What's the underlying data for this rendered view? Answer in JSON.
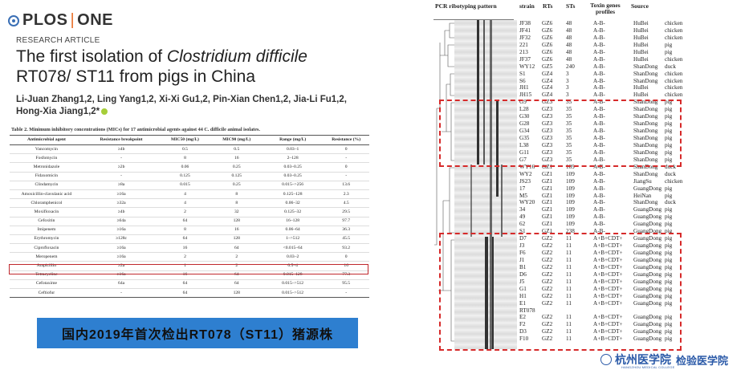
{
  "header": {
    "journal_left": "PLOS",
    "journal_sep": "|",
    "journal_right": "ONE",
    "article_type": "RESEARCH ARTICLE",
    "title_a": "The first isolation of ",
    "title_species": "Clostridium difficile",
    "title_b": " RT078/ ST11 from pigs in China",
    "authors": "Li-Juan Zhang1,2, Ling Yang1,2, Xi-Xi Gu1,2, Pin-Xian Chen1,2, Jia-Li Fu1,2, Hong-Xia Jiang1,2*"
  },
  "mic_table": {
    "caption": "Table 2.  Minimum inhibitory concentrations (MICs) for 17 antimicrobial agents against 44 C. difficile animal isolates.",
    "headers": [
      "Antimicrobial agent",
      "Resistance breakpoint",
      "MIC50 (mg/L)",
      "MIC90 (mg/L)",
      "Range (mg/L)",
      "Resistance (%)"
    ],
    "rows": [
      [
        "Vancomycin",
        "≥4b",
        "0.5",
        "0.5",
        "0.03–1",
        "0"
      ],
      [
        "Fosfomycin",
        "-",
        "8",
        "16",
        "2–128",
        "-"
      ],
      [
        "Metronidazole",
        "≥2b",
        "0.06",
        "0.25",
        "0.03–0.25",
        "0"
      ],
      [
        "Fidaxomicin",
        "-",
        "0.125",
        "0.125",
        "0.03–0.25",
        "-"
      ],
      [
        "Clindamycin",
        "≥8a",
        "0.015",
        "0.25",
        "0.015–>256",
        "13.6"
      ],
      [
        "Amoxicillin-clavulanic acid",
        "≥16a",
        "4",
        "8",
        "0.125–128",
        "2.3"
      ],
      [
        "Chloramphenicol",
        "≥32a",
        "4",
        "8",
        "0.06–32",
        "4.5"
      ],
      [
        "Moxifloxacin",
        "≥4b",
        "2",
        "32",
        "0.125–32",
        "29.5"
      ],
      [
        "Cefoxitin",
        "≥64a",
        "64",
        "128",
        "16–128",
        "97.7"
      ],
      [
        "Imipenem",
        "≥16a",
        "8",
        "16",
        "0.06–64",
        "36.3"
      ],
      [
        "Erythromycin",
        "≥128c",
        "64",
        "128",
        "1–>512",
        "45.5"
      ],
      [
        "Ciprofloxacin",
        "≥16a",
        "16",
        "64",
        "<0.015–64",
        "93.2"
      ],
      [
        "Meropenem",
        "≥16a",
        "2",
        "2",
        "0.03–2",
        "0"
      ],
      [
        "Ampicillin",
        "≥2a",
        "1",
        "2",
        "0.5–4",
        "16"
      ],
      [
        "Tetracycline",
        "≥16a",
        "16",
        "64",
        "0.015–128",
        "77.3"
      ],
      [
        "Cefotaxime",
        "64a",
        "64",
        "64",
        "0.015–>512",
        "95.5"
      ],
      [
        "Ceftiofur",
        "-",
        "64",
        "128",
        "0.015–>512",
        "-"
      ]
    ]
  },
  "banner_text": "国内2019年首次检出RT078（ST11）猪源株",
  "figure": {
    "pattern_label": "PCR ribotyping pattern",
    "col_strain": "strain",
    "col_rts": "RTs",
    "col_sts": "STs",
    "col_toxin": "Toxin genes profiles",
    "col_source": "Source",
    "rows": [
      [
        "JF38",
        "GZ6",
        "48",
        "A-B-",
        "HuBei",
        "chicken"
      ],
      [
        "JF41",
        "GZ6",
        "48",
        "A-B-",
        "HuBei",
        "chicken"
      ],
      [
        "JF32",
        "GZ6",
        "48",
        "A-B-",
        "HuBei",
        "chicken"
      ],
      [
        "221",
        "GZ6",
        "48",
        "A-B-",
        "HuBei",
        "pig"
      ],
      [
        "213",
        "GZ6",
        "48",
        "A-B-",
        "HuBei",
        "pig"
      ],
      [
        "JF37",
        "GZ6",
        "48",
        "A-B-",
        "HuBei",
        "chicken"
      ],
      [
        "WY12",
        "GZ5",
        "240",
        "A-B-",
        "ShanDong",
        "duck"
      ],
      [
        "S1",
        "GZ4",
        "3",
        "A-B-",
        "ShanDong",
        "chicken"
      ],
      [
        "S6",
        "GZ4",
        "3",
        "A-B-",
        "ShanDong",
        "chicken"
      ],
      [
        "JH1",
        "GZ4",
        "3",
        "A-B-",
        "HuBei",
        "chicken"
      ],
      [
        "JH15",
        "GZ4",
        "3",
        "A-B-",
        "HuBei",
        "chicken"
      ],
      [
        "G9",
        "GZ3",
        "35",
        "A-B-",
        "ShanDong",
        "pig"
      ],
      [
        "L28",
        "GZ3",
        "35",
        "A-B-",
        "ShanDong",
        "pig"
      ],
      [
        "G30",
        "GZ3",
        "35",
        "A-B-",
        "ShanDong",
        "pig"
      ],
      [
        "G28",
        "GZ3",
        "35",
        "A-B-",
        "ShanDong",
        "pig"
      ],
      [
        "G34",
        "GZ3",
        "35",
        "A-B-",
        "ShanDong",
        "pig"
      ],
      [
        "G35",
        "GZ3",
        "35",
        "A-B-",
        "ShanDong",
        "pig"
      ],
      [
        "L38",
        "GZ3",
        "35",
        "A-B-",
        "ShanDong",
        "pig"
      ],
      [
        "G11",
        "GZ3",
        "35",
        "A-B-",
        "ShanDong",
        "pig"
      ],
      [
        "G7",
        "GZ3",
        "35",
        "A-B-",
        "ShanDong",
        "pig"
      ],
      [
        "WY16",
        "GZ1",
        "109",
        "A-B-",
        "ShanDong",
        "duck"
      ],
      [
        "WY2",
        "GZ1",
        "109",
        "A-B-",
        "ShanDong",
        "duck"
      ],
      [
        "JS23",
        "GZ1",
        "109",
        "A-B-",
        "JiangSu",
        "chicken"
      ],
      [
        "17",
        "GZ1",
        "109",
        "A-B-",
        "GuangDong",
        "pig"
      ],
      [
        "M5",
        "GZ1",
        "109",
        "A-B-",
        "HeiNan",
        "pig"
      ],
      [
        "WY20",
        "GZ1",
        "109",
        "A-B-",
        "ShanDong",
        "duck"
      ],
      [
        "34",
        "GZ1",
        "109",
        "A-B-",
        "GuangDong",
        "pig"
      ],
      [
        "49",
        "GZ1",
        "109",
        "A-B-",
        "GuangDong",
        "pig"
      ],
      [
        "62",
        "GZ1",
        "109",
        "A-B-",
        "GuangDong",
        "pig"
      ],
      [
        "S1",
        "GZ1",
        "238",
        "A-B-",
        "GuangDong",
        "pig"
      ],
      [
        "D7",
        "GZ2",
        "11",
        "A+B+CDT+",
        "GuangDong",
        "pig"
      ],
      [
        "J3",
        "GZ2",
        "11",
        "A+B+CDT+",
        "GuangDong",
        "pig"
      ],
      [
        "F6",
        "GZ2",
        "11",
        "A+B+CDT+",
        "GuangDong",
        "pig"
      ],
      [
        "J1",
        "GZ2",
        "11",
        "A+B+CDT+",
        "GuangDong",
        "pig"
      ],
      [
        "B1",
        "GZ2",
        "11",
        "A+B+CDT+",
        "GuangDong",
        "pig"
      ],
      [
        "D6",
        "GZ2",
        "11",
        "A+B+CDT+",
        "GuangDong",
        "pig"
      ],
      [
        "J5",
        "GZ2",
        "11",
        "A+B+CDT+",
        "GuangDong",
        "pig"
      ],
      [
        "G1",
        "GZ2",
        "11",
        "A+B+CDT+",
        "GuangDong",
        "pig"
      ],
      [
        "H1",
        "GZ2",
        "11",
        "A+B+CDT+",
        "GuangDong",
        "pig"
      ],
      [
        "E1",
        "GZ2",
        "11",
        "A+B+CDT+",
        "GuangDong",
        "pig"
      ],
      [
        "RT078",
        "",
        "",
        "",
        "",
        ""
      ],
      [
        "E2",
        "GZ2",
        "11",
        "A+B+CDT+",
        "GuangDong",
        "pig"
      ],
      [
        "F2",
        "GZ2",
        "11",
        "A+B+CDT+",
        "GuangDong",
        "pig"
      ],
      [
        "D3",
        "GZ2",
        "11",
        "A+B+CDT+",
        "GuangDong",
        "pig"
      ],
      [
        "F10",
        "GZ2",
        "11",
        "A+B+CDT+",
        "GuangDong",
        "pig"
      ]
    ]
  },
  "footer": {
    "school_cn": "杭州医学院",
    "school_en": "HANGZHOU MEDICAL COLLEGE",
    "dept": "检验医学院"
  },
  "colors": {
    "highlight_red": "#c0282d",
    "banner_blue": "#2e7fd0",
    "footer_blue": "#2b5aa8"
  }
}
